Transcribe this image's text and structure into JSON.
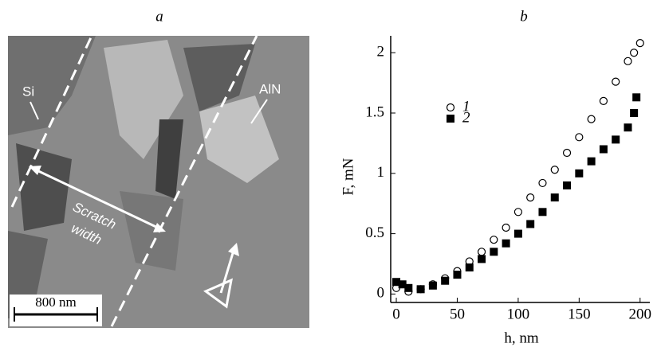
{
  "image": {
    "panel_label": "a",
    "label_si": "Si",
    "label_aln": "AlN",
    "scratch_line1": "Scratch",
    "scratch_line2": "width",
    "scale_bar": "800 nm"
  },
  "chart_data": {
    "type": "scatter",
    "panel_label": "b",
    "x_label": "h, nm",
    "y_label": "F, mN",
    "xlim": [
      -4.6,
      208
    ],
    "ylim": [
      -0.07,
      2.14
    ],
    "xticks": [
      0,
      50,
      100,
      150,
      200
    ],
    "yticks": [
      0,
      0.5,
      1,
      1.5,
      2
    ],
    "series": [
      {
        "name": "1",
        "marker": "circle",
        "color": "#000000",
        "x": [
          0,
          10,
          20,
          30,
          40,
          50,
          60,
          70,
          80,
          90,
          100,
          110,
          120,
          130,
          140,
          150,
          160,
          170,
          180,
          190,
          195,
          200
        ],
        "values": [
          0.05,
          0.02,
          0.04,
          0.08,
          0.13,
          0.19,
          0.27,
          0.35,
          0.45,
          0.55,
          0.68,
          0.8,
          0.92,
          1.03,
          1.17,
          1.3,
          1.45,
          1.6,
          1.76,
          1.93,
          2.0,
          2.08
        ]
      },
      {
        "name": "2",
        "marker": "square",
        "color": "#000000",
        "x": [
          0,
          5,
          10,
          20,
          30,
          40,
          50,
          60,
          70,
          80,
          90,
          100,
          110,
          120,
          130,
          140,
          150,
          160,
          170,
          180,
          190,
          195,
          197
        ],
        "values": [
          0.1,
          0.08,
          0.05,
          0.04,
          0.07,
          0.11,
          0.16,
          0.22,
          0.29,
          0.35,
          0.42,
          0.5,
          0.58,
          0.68,
          0.8,
          0.9,
          1.0,
          1.1,
          1.2,
          1.28,
          1.38,
          1.5,
          1.63
        ]
      }
    ]
  }
}
